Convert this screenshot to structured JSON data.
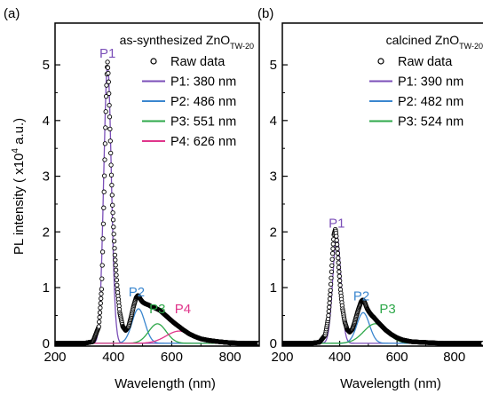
{
  "chart_data": [
    {
      "type": "line",
      "panel_label": "(a)",
      "title": "as-synthesized ZnO",
      "title_subscript": "TW-20",
      "xlabel": "Wavelength (nm)",
      "ylabel": "PL intensity ( x10",
      "ylabel_superscript": "4",
      "ylabel_suffix": " a.u.)",
      "xlim": [
        200,
        900
      ],
      "ylim": [
        -0.05,
        5.75
      ],
      "x_ticks": [
        200,
        400,
        600,
        800
      ],
      "y_ticks": [
        0,
        1,
        2,
        3,
        4,
        5
      ],
      "legend_position": "top-right",
      "raw_data": {
        "name": "Raw data",
        "x": [
          200,
          300,
          330,
          350,
          360,
          365,
          370,
          375,
          378,
          380,
          383,
          387,
          392,
          397,
          405,
          413,
          422,
          432,
          442,
          452,
          462,
          470,
          478,
          484,
          488,
          493,
          500,
          510,
          520,
          530,
          545,
          560,
          575,
          590,
          605,
          620,
          640,
          660,
          680,
          700,
          730,
          760,
          800,
          850,
          900
        ],
        "y": [
          0.0,
          0.0,
          0.03,
          0.3,
          1.0,
          2.0,
          3.2,
          4.4,
          4.9,
          5.05,
          4.8,
          4.1,
          3.2,
          2.45,
          1.6,
          1.0,
          0.55,
          0.3,
          0.23,
          0.3,
          0.5,
          0.68,
          0.82,
          0.86,
          0.84,
          0.79,
          0.74,
          0.71,
          0.69,
          0.66,
          0.63,
          0.59,
          0.52,
          0.45,
          0.38,
          0.32,
          0.24,
          0.17,
          0.12,
          0.08,
          0.05,
          0.03,
          0.01,
          0.0,
          0.0
        ]
      },
      "peaks": [
        {
          "name": "P1: 380 nm",
          "label": "P1",
          "center": 380,
          "height": 5.0,
          "sigma": 13,
          "color": "#7b4fb8"
        },
        {
          "name": "P2: 486 nm",
          "label": "P2",
          "center": 486,
          "height": 0.62,
          "sigma": 22,
          "color": "#3a86cf"
        },
        {
          "name": "P3: 551 nm",
          "label": "P3",
          "center": 551,
          "height": 0.35,
          "sigma": 30,
          "color": "#2ea84a"
        },
        {
          "name": "P4: 626 nm",
          "label": "P4",
          "center": 626,
          "height": 0.22,
          "sigma": 45,
          "color": "#e0358b"
        }
      ]
    },
    {
      "type": "line",
      "panel_label": "(b)",
      "title": "calcined ZnO",
      "title_subscript": "TW-20",
      "xlabel": "Wavelength (nm)",
      "xlim": [
        200,
        900
      ],
      "ylim": [
        -0.05,
        5.75
      ],
      "x_ticks": [
        200,
        400,
        600,
        800
      ],
      "y_ticks": [
        0,
        1,
        2,
        3,
        4,
        5
      ],
      "legend_position": "top-right",
      "raw_data": {
        "name": "Raw data",
        "x": [
          200,
          300,
          330,
          350,
          360,
          368,
          375,
          380,
          385,
          388,
          392,
          397,
          403,
          410,
          418,
          426,
          435,
          444,
          452,
          460,
          468,
          475,
          480,
          485,
          490,
          496,
          503,
          512,
          520,
          530,
          545,
          560,
          580,
          600,
          620,
          650,
          680,
          720,
          760,
          800,
          860,
          900
        ],
        "y": [
          0.0,
          0.0,
          0.02,
          0.15,
          0.45,
          0.95,
          1.6,
          1.95,
          2.05,
          1.95,
          1.7,
          1.35,
          0.95,
          0.62,
          0.38,
          0.25,
          0.2,
          0.25,
          0.37,
          0.52,
          0.65,
          0.75,
          0.78,
          0.76,
          0.7,
          0.62,
          0.56,
          0.5,
          0.46,
          0.4,
          0.32,
          0.24,
          0.16,
          0.1,
          0.06,
          0.03,
          0.02,
          0.01,
          0.0,
          0.0,
          0.0,
          0.0
        ]
      },
      "peaks": [
        {
          "name": "P1: 390 nm",
          "label": "P1",
          "center": 390,
          "height": 1.95,
          "sigma": 14,
          "color": "#7b4fb8"
        },
        {
          "name": "P2: 482 nm",
          "label": "P2",
          "center": 482,
          "height": 0.55,
          "sigma": 22,
          "color": "#3a86cf"
        },
        {
          "name": "P3: 524 nm",
          "label": "P3",
          "center": 524,
          "height": 0.35,
          "sigma": 40,
          "color": "#2ea84a"
        }
      ]
    }
  ]
}
